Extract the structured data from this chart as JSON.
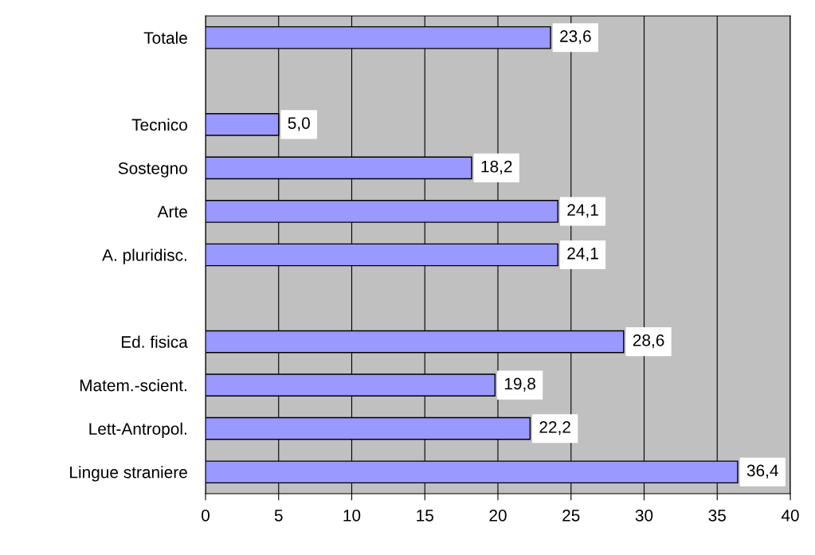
{
  "chart_data": {
    "type": "bar",
    "orientation": "horizontal",
    "categories": [
      "Totale",
      null,
      "Tecnico",
      "Sostegno",
      "Arte",
      "A. pluridisc.",
      null,
      "Ed. fisica",
      "Matem.-scient.",
      "Lett-Antropol.",
      "Lingue straniere"
    ],
    "values": [
      23.6,
      null,
      5.0,
      18.2,
      24.1,
      24.1,
      null,
      28.6,
      19.8,
      22.2,
      36.4
    ],
    "value_labels": [
      "23,6",
      null,
      "5,0",
      "18,2",
      "24,1",
      "24,1",
      null,
      "28,6",
      "19,8",
      "22,2",
      "36,4"
    ],
    "color": "#9999ff",
    "xlim": [
      0,
      40
    ],
    "xticks": [
      0,
      5,
      10,
      15,
      20,
      25,
      30,
      35,
      40
    ],
    "grid": "x"
  }
}
